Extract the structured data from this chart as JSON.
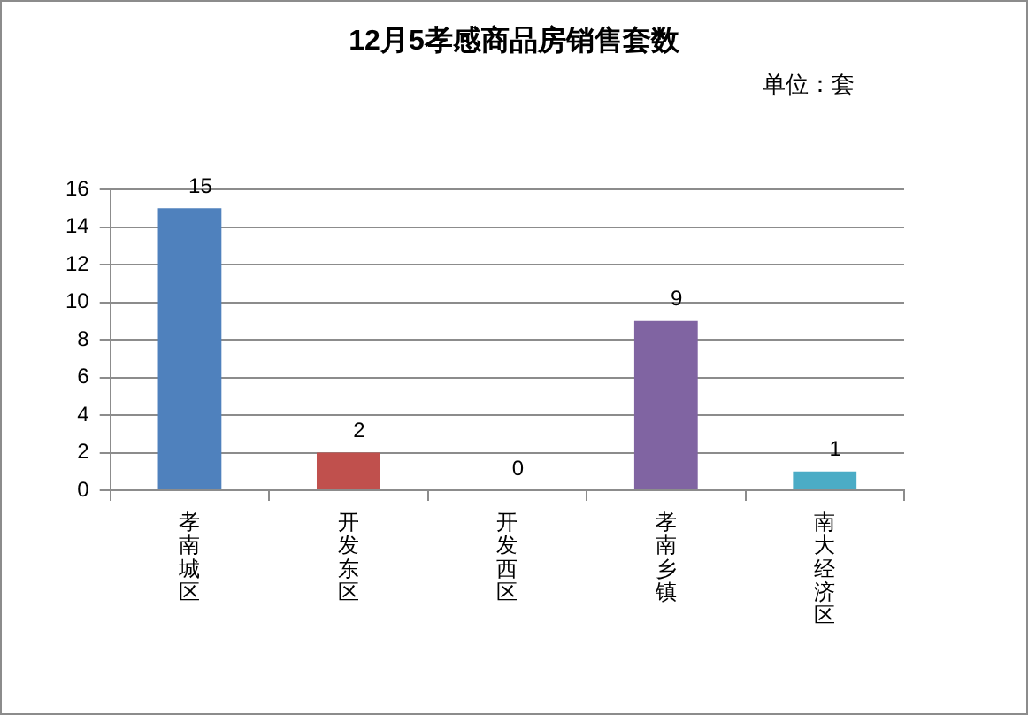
{
  "chart_data": {
    "type": "bar",
    "title": "12月5孝感商品房销售套数",
    "annotations": [
      "单位：套"
    ],
    "categories": [
      "孝南城区",
      "开发东区",
      "开发西区",
      "孝南乡镇",
      "南大经济区"
    ],
    "values": [
      15,
      2,
      0,
      9,
      1
    ],
    "colors": [
      "#4f81bd",
      "#c0504d",
      "#9bbb59",
      "#8064a2",
      "#4bacc6"
    ],
    "ylim": [
      0,
      16
    ],
    "yticks": [
      0,
      2,
      4,
      6,
      8,
      10,
      12,
      14,
      16
    ],
    "grid": "y",
    "legend": false,
    "data_labels": true
  }
}
